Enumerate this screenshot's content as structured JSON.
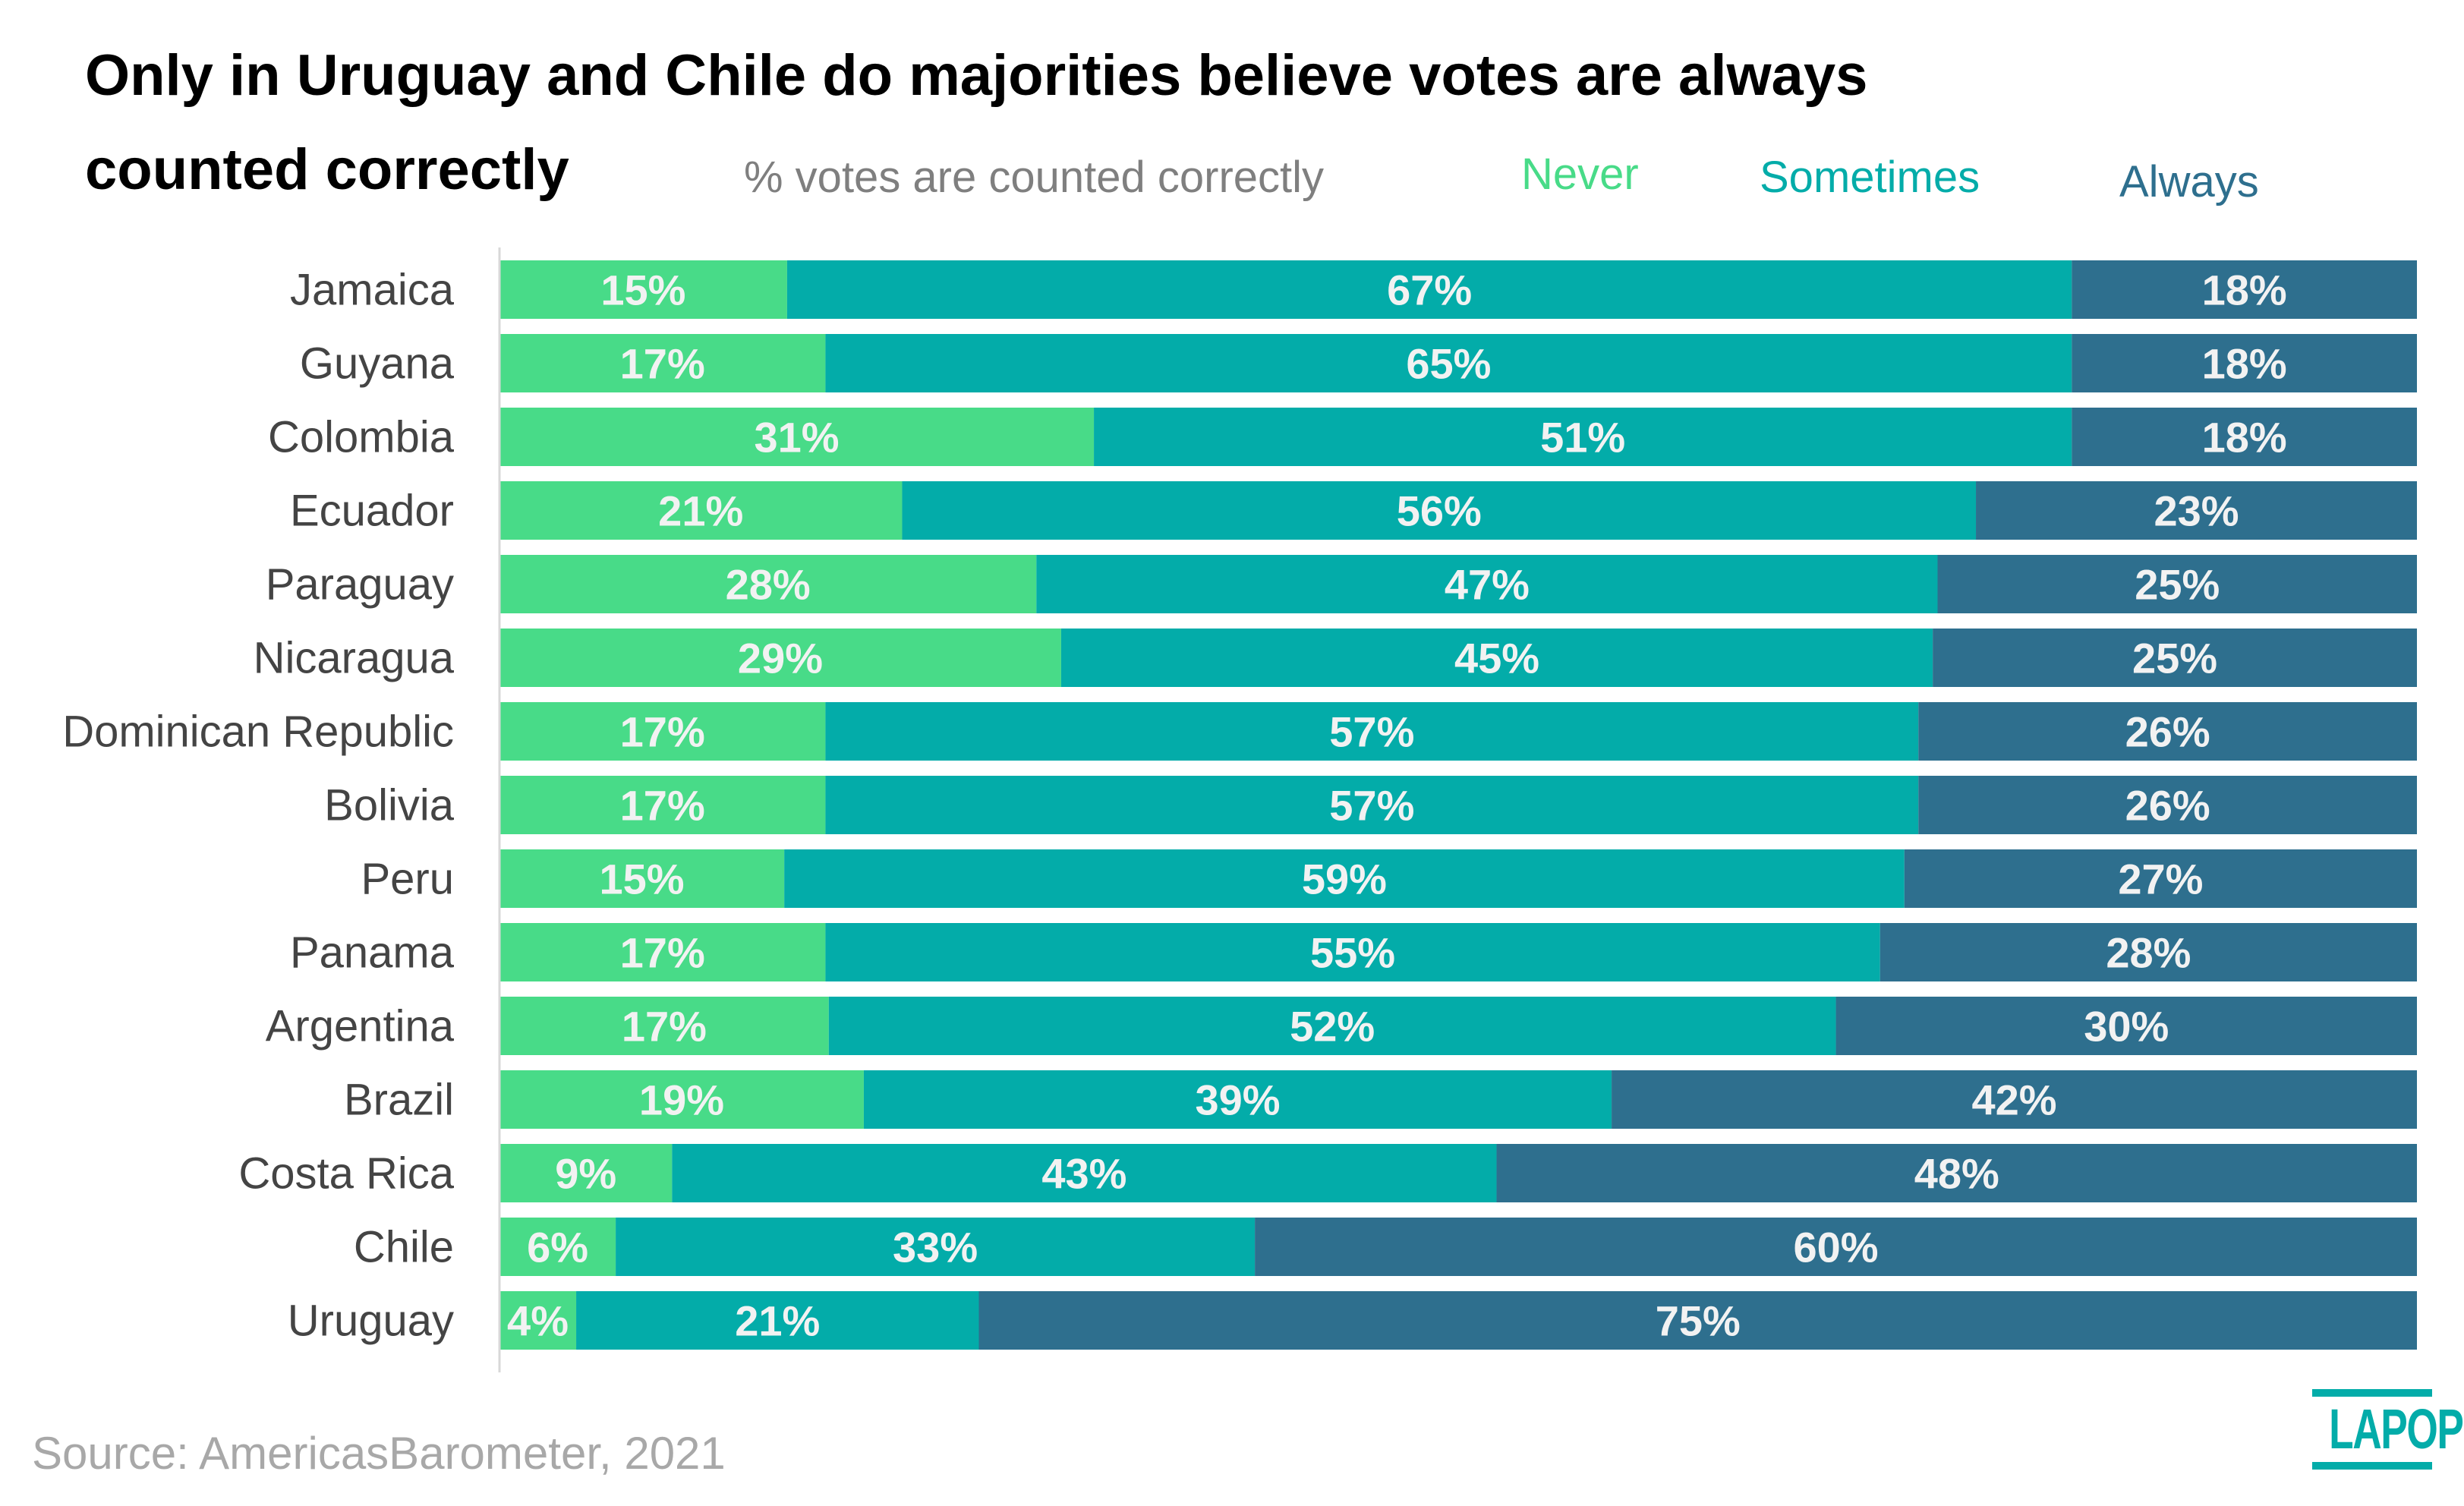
{
  "chart_data": {
    "type": "bar",
    "orientation": "horizontal",
    "stacked": true,
    "title": "Only in Uruguay and Chile do majorities believe votes are always counted correctly",
    "title_lines": [
      "Only in Uruguay and Chile do majorities believe votes are always",
      "counted correctly"
    ],
    "subtitle": "% votes are counted correctly",
    "xlabel": "",
    "ylabel": "",
    "xlim": [
      0,
      100
    ],
    "grid": false,
    "legend_position": "top-right",
    "categories": [
      "Jamaica",
      "Guyana",
      "Colombia",
      "Ecuador",
      "Paraguay",
      "Nicaragua",
      "Dominican Republic",
      "Bolivia",
      "Peru",
      "Panama",
      "Argentina",
      "Brazil",
      "Costa Rica",
      "Chile",
      "Uruguay"
    ],
    "series": [
      {
        "name": "Never",
        "color": "#48db88",
        "values": [
          15,
          17,
          31,
          21,
          28,
          29,
          17,
          17,
          15,
          17,
          17,
          19,
          9,
          6,
          4
        ]
      },
      {
        "name": "Sometimes",
        "color": "#03aca9",
        "values": [
          67,
          65,
          51,
          56,
          47,
          45,
          57,
          57,
          59,
          55,
          52,
          39,
          43,
          33,
          21
        ]
      },
      {
        "name": "Always",
        "color": "#2e6f8e",
        "values": [
          18,
          18,
          18,
          23,
          25,
          25,
          26,
          26,
          27,
          28,
          30,
          42,
          48,
          60,
          75
        ]
      }
    ],
    "value_label_suffix": "%",
    "source": "Source: AmericasBarometer, 2021"
  },
  "header": {
    "title_line1": "Only in Uruguay and Chile do majorities believe votes are always",
    "title_line2": "counted correctly",
    "subtitle": "% votes are counted correctly",
    "legend": [
      {
        "label": "Never",
        "color": "#48db88"
      },
      {
        "label": "Sometimes",
        "color": "#03aca9"
      },
      {
        "label": "Always",
        "color": "#2e6f8e"
      }
    ]
  },
  "footer": {
    "source": "Source: AmericasBarometer, 2021",
    "logo_text": "LAPOP"
  },
  "colors": {
    "label_text": "#444444",
    "value_text": "#f2f2f2",
    "axis_line": "#d8d8d8"
  }
}
